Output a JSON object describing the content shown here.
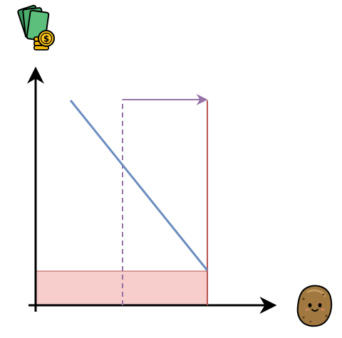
{
  "figure": {
    "y_axis_icon": "money-icon",
    "x_axis_icon": "potato-icon",
    "colors": {
      "axis": "#000000",
      "demand_line": "#6c8ebf",
      "purple_arrow": "#9673a6",
      "red_line": "#b85450",
      "shaded_area_fill": "#f8cecc",
      "shaded_area_stroke": "#b85450",
      "potato_body": "#a07840",
      "money_green": "#2e8b57",
      "coin_gold": "#f5b800"
    }
  }
}
